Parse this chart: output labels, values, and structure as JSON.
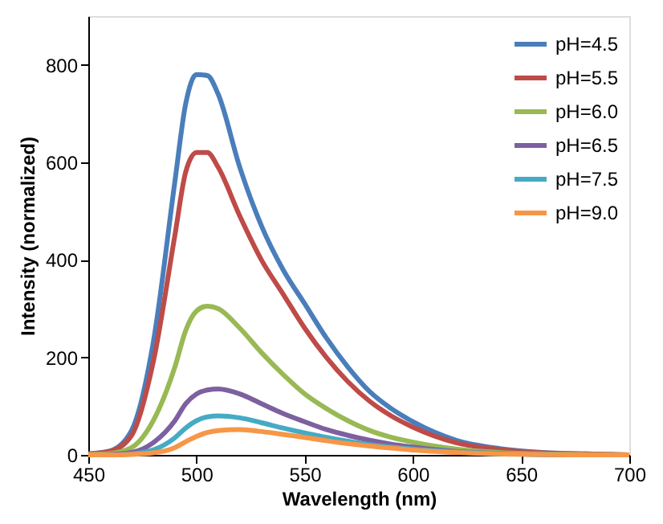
{
  "chart_data": {
    "type": "line",
    "xlabel": "Wavelength (nm)",
    "ylabel": "Intensity (normalized)",
    "x": [
      450,
      460,
      470,
      480,
      490,
      495,
      500,
      505,
      510,
      520,
      530,
      540,
      550,
      560,
      570,
      580,
      590,
      600,
      620,
      640,
      660,
      680,
      700
    ],
    "series": [
      {
        "name": "pH=4.5",
        "color": "#4a7ebb",
        "values": [
          2,
          8,
          50,
          230,
          560,
          720,
          780,
          778,
          740,
          590,
          470,
          380,
          310,
          240,
          180,
          130,
          95,
          68,
          30,
          13,
          5,
          2,
          0
        ]
      },
      {
        "name": "pH=5.5",
        "color": "#be4b48",
        "values": [
          2,
          7,
          40,
          190,
          450,
          580,
          620,
          620,
          590,
          490,
          400,
          330,
          260,
          200,
          150,
          110,
          80,
          57,
          25,
          11,
          4,
          2,
          0
        ]
      },
      {
        "name": "pH=6.0",
        "color": "#98b954",
        "values": [
          1,
          3,
          15,
          70,
          180,
          255,
          295,
          305,
          300,
          260,
          210,
          165,
          125,
          95,
          70,
          50,
          36,
          26,
          12,
          5,
          2,
          1,
          0
        ]
      },
      {
        "name": "pH=6.5",
        "color": "#7d60a0",
        "values": [
          0,
          1,
          5,
          25,
          70,
          105,
          125,
          133,
          135,
          125,
          105,
          85,
          68,
          52,
          40,
          30,
          22,
          16,
          7,
          3,
          1,
          0,
          0
        ]
      },
      {
        "name": "pH=7.5",
        "color": "#46aac5",
        "values": [
          0,
          0,
          2,
          10,
          35,
          55,
          70,
          78,
          80,
          76,
          66,
          55,
          45,
          36,
          28,
          21,
          16,
          12,
          6,
          2,
          1,
          0,
          0
        ]
      },
      {
        "name": "pH=9.0",
        "color": "#f79646",
        "values": [
          0,
          0,
          1,
          4,
          15,
          27,
          38,
          46,
          50,
          52,
          48,
          42,
          36,
          29,
          23,
          18,
          14,
          10,
          5,
          2,
          1,
          0,
          0
        ]
      }
    ],
    "xlim": [
      450,
      700
    ],
    "xticks": [
      450,
      500,
      550,
      600,
      650,
      700
    ],
    "ylim": [
      0,
      900
    ],
    "yticks": [
      0,
      200,
      400,
      600,
      800
    ],
    "grid": false,
    "legend": "top right",
    "marker": "none",
    "line_style": "solid"
  }
}
